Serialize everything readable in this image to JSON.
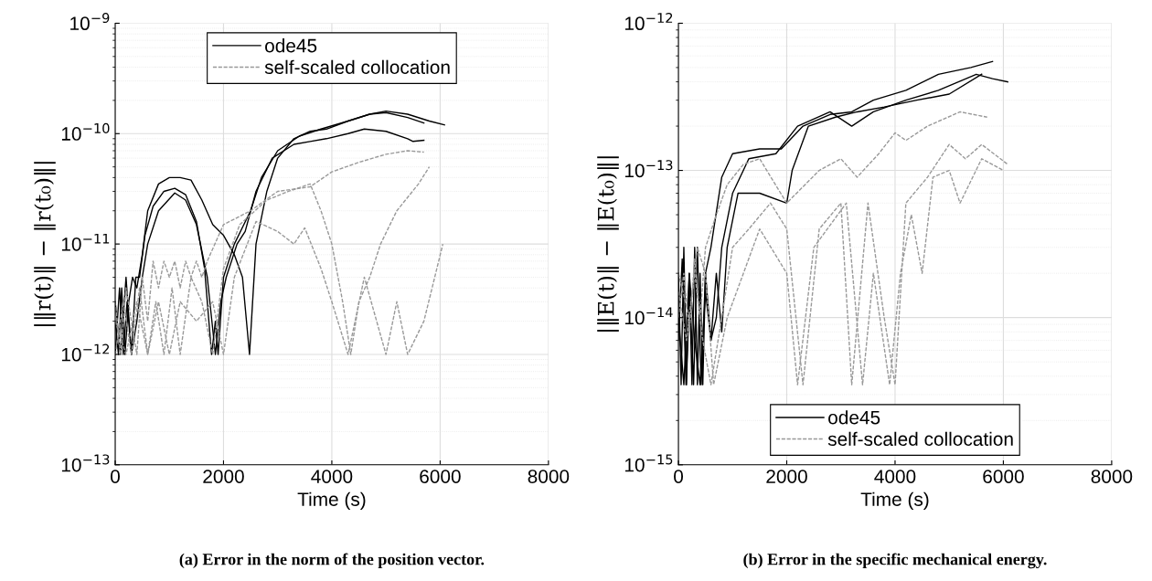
{
  "chart_data": [
    {
      "type": "line",
      "xlabel": "Time (s)",
      "ylabel": "|‖r(t)‖ − ‖r(t₀)‖|",
      "log": "y",
      "grid": true,
      "legend": "top",
      "xlim": [
        0,
        8000
      ],
      "xticks": [
        0,
        2000,
        4000,
        6000,
        8000
      ],
      "ylim": [
        1e-13,
        1e-09
      ],
      "yticks": [
        {
          "value": 1e-13,
          "label": "10$^{−13}$"
        },
        {
          "value": 1e-12,
          "label": "10$^{−12}$"
        },
        {
          "value": 1e-11,
          "label": "10$^{−11}$"
        },
        {
          "value": 1e-10,
          "label": "10$^{−10}$"
        },
        {
          "value": 1e-09,
          "label": "10$^{−9}$"
        }
      ],
      "annotations": [
        "(a) Error in the norm of the position vector."
      ],
      "series": [
        {
          "name": "ode45",
          "color": "#000000",
          "line_style": "solid",
          "x": [
            0,
            60,
            120,
            180,
            250,
            320,
            400,
            500,
            600,
            800,
            1000,
            1200,
            1400,
            1600,
            1800,
            2000,
            2200,
            2350,
            2480,
            2600,
            2800,
            3000,
            3300,
            3600,
            3900,
            4300,
            4700,
            5000,
            5400,
            5800,
            6080
          ],
          "values": [
            2e-12,
            1e-12,
            4e-12,
            1e-12,
            3e-12,
            5e-12,
            4e-12,
            8e-12,
            2e-11,
            3.5e-11,
            4e-11,
            4e-11,
            3.8e-11,
            2.5e-11,
            1.5e-11,
            1.2e-11,
            8e-12,
            5e-12,
            1e-12,
            1e-11,
            3e-11,
            6e-11,
            9e-11,
            1.05e-10,
            1.1e-10,
            1.3e-10,
            1.5e-10,
            1.6e-10,
            1.5e-10,
            1.3e-10,
            1.2e-10
          ]
        },
        {
          "color": "#000000",
          "line_style": "solid",
          "x": [
            0,
            80,
            150,
            220,
            300,
            380,
            450,
            550,
            700,
            900,
            1100,
            1300,
            1500,
            1650,
            1780,
            1850,
            1900,
            2000,
            2200,
            2500,
            2700,
            3000,
            3400,
            3800,
            4300,
            4700,
            5000,
            5400,
            5700
          ],
          "values": [
            1e-12,
            4e-12,
            1e-12,
            3e-12,
            1e-12,
            5e-12,
            5e-12,
            1.2e-11,
            2.2e-11,
            3e-11,
            3.2e-11,
            2.8e-11,
            1.6e-11,
            6e-12,
            1e-12,
            2e-12,
            1e-12,
            5e-12,
            1e-11,
            2e-11,
            4e-11,
            7e-11,
            9.5e-11,
            1.1e-10,
            1.3e-10,
            1.5e-10,
            1.55e-10,
            1.4e-10,
            1.25e-10
          ]
        },
        {
          "color": "#000000",
          "line_style": "solid",
          "x": [
            0,
            100,
            200,
            300,
            400,
            500,
            600,
            800,
            1100,
            1300,
            1500,
            1700,
            1850,
            1950,
            2050,
            2250,
            2400,
            2600,
            2900,
            3300,
            3600,
            3900,
            4300,
            4600,
            5000,
            5400,
            5500,
            5700
          ],
          "values": [
            3e-12,
            1e-12,
            5e-12,
            1e-12,
            2e-12,
            5e-12,
            1e-11,
            2e-11,
            2.9e-11,
            2.5e-11,
            1.5e-11,
            5e-12,
            1e-12,
            3e-12,
            5e-12,
            1e-11,
            1.3e-11,
            3e-11,
            6e-11,
            8e-11,
            8.5e-11,
            9e-11,
            1e-10,
            1.1e-10,
            1.05e-10,
            9e-11,
            8.5e-11,
            8.7e-11
          ]
        },
        {
          "name": "self-scaled collocation",
          "color": "#999999",
          "line_style": "dashed",
          "x": [
            0,
            100,
            200,
            300,
            400,
            500,
            600,
            700,
            800,
            900,
            1000,
            1100,
            1200,
            1300,
            1400,
            1500,
            1600,
            1700,
            2000,
            2500,
            3000,
            3600,
            4000,
            4500,
            5000,
            5400,
            5700
          ],
          "values": [
            3e-12,
            1e-12,
            4e-12,
            2e-12,
            1e-12,
            5e-12,
            2e-12,
            7e-12,
            4e-12,
            7e-12,
            5e-12,
            7e-12,
            4e-12,
            7e-12,
            5e-12,
            7e-12,
            5e-12,
            7e-12,
            1.5e-11,
            2e-11,
            3e-11,
            3.3e-11,
            4.5e-11,
            5.5e-11,
            6.5e-11,
            7e-11,
            6.8e-11
          ]
        },
        {
          "color": "#999999",
          "line_style": "dashed",
          "x": [
            0,
            150,
            300,
            450,
            600,
            750,
            900,
            1050,
            1200,
            1400,
            1600,
            1800,
            2000,
            2300,
            2800,
            3200,
            3600,
            3800,
            4000,
            4200,
            4350,
            4500,
            4700,
            4900,
            5200,
            5600,
            5800
          ],
          "values": [
            1e-12,
            3e-12,
            1e-12,
            4e-12,
            1e-12,
            3e-12,
            1e-12,
            4e-12,
            1e-12,
            5e-12,
            3e-12,
            1e-12,
            6e-12,
            1.5e-11,
            2.5e-11,
            3e-11,
            3.5e-11,
            2e-11,
            1e-11,
            3e-12,
            1e-12,
            3e-12,
            5e-12,
            1e-11,
            2e-11,
            3.5e-11,
            5e-11
          ]
        },
        {
          "color": "#999999",
          "line_style": "dashed",
          "x": [
            0,
            200,
            400,
            600,
            800,
            1000,
            1200,
            1500,
            1800,
            2000,
            2200,
            2600,
            3000,
            3300,
            3500,
            3800,
            4000,
            4300,
            4600,
            5000,
            5200,
            5400,
            5700,
            5900,
            6050
          ],
          "values": [
            2e-12,
            1e-12,
            3e-12,
            1e-12,
            3e-12,
            1e-12,
            3e-12,
            2e-12,
            3e-12,
            1e-12,
            5e-12,
            1.6e-11,
            1.3e-11,
            1e-11,
            1.4e-11,
            6e-12,
            3e-12,
            1e-12,
            5e-12,
            1e-12,
            3e-12,
            1e-12,
            2e-12,
            5e-12,
            1e-11
          ]
        }
      ]
    },
    {
      "type": "line",
      "xlabel": "Time (s)",
      "ylabel": "|‖E(t)‖ − ‖E(t₀)‖|",
      "log": "y",
      "grid": true,
      "legend": "bottom",
      "xlim": [
        0,
        8000
      ],
      "xticks": [
        0,
        2000,
        4000,
        6000,
        8000
      ],
      "ylim": [
        1e-15,
        1e-12
      ],
      "yticks": [
        {
          "value": 1e-15,
          "label": "10$^{−15}$"
        },
        {
          "value": 1e-14,
          "label": "10$^{−14}$"
        },
        {
          "value": 1e-13,
          "label": "10$^{−13}$"
        },
        {
          "value": 1e-12,
          "label": "10$^{−12}$"
        }
      ],
      "annotations": [
        "(b) Error in the specific mechanical energy."
      ],
      "series": [
        {
          "name": "ode45",
          "color": "#000000",
          "line_style": "solid",
          "x": [
            0,
            50,
            100,
            150,
            200,
            250,
            300,
            350,
            400,
            450,
            500,
            600,
            800,
            1000,
            1500,
            1900,
            2300,
            2800,
            3200,
            3600,
            4200,
            4800,
            5400,
            5800
          ],
          "values": [
            2e-14,
            3.5e-15,
            3e-14,
            3.5e-15,
            2e-14,
            3.5e-15,
            3e-14,
            3.5e-15,
            2e-14,
            3.5e-15,
            2e-14,
            3e-14,
            9e-14,
            1.3e-13,
            1.4e-13,
            1.4e-13,
            2e-13,
            2.4e-13,
            2.5e-13,
            3e-13,
            3.5e-13,
            4.5e-13,
            5e-13,
            5.5e-13
          ]
        },
        {
          "color": "#000000",
          "line_style": "solid",
          "x": [
            0,
            70,
            140,
            210,
            280,
            350,
            420,
            500,
            600,
            700,
            800,
            1000,
            1300,
            1800,
            2200,
            2800,
            3200,
            3600,
            4200,
            4800,
            5500,
            5800,
            6080
          ],
          "values": [
            7e-15,
            2.5e-14,
            3.5e-15,
            1.5e-14,
            3.5e-15,
            3e-14,
            3.5e-15,
            2e-14,
            7e-15,
            1e-14,
            3e-14,
            7e-14,
            1.2e-13,
            1.3e-13,
            2e-13,
            2.5e-13,
            2e-13,
            2.5e-13,
            3e-13,
            3.5e-13,
            4.5e-13,
            4.2e-13,
            4e-13
          ]
        },
        {
          "color": "#000000",
          "line_style": "solid",
          "x": [
            0,
            100,
            200,
            300,
            400,
            500,
            600,
            700,
            800,
            900,
            1100,
            1500,
            2000,
            2100,
            2400,
            2900,
            3300,
            3800,
            4400,
            5000,
            5600
          ],
          "values": [
            1e-14,
            3.5e-15,
            2e-14,
            7e-15,
            3.5e-15,
            1.5e-14,
            7e-15,
            2e-14,
            8e-15,
            3e-14,
            7e-14,
            7e-14,
            6e-14,
            1e-13,
            2e-13,
            2.3e-13,
            2.5e-13,
            2.7e-13,
            3e-13,
            3.3e-13,
            4.5e-13
          ]
        },
        {
          "name": "self-scaled collocation",
          "color": "#999999",
          "line_style": "dashed",
          "x": [
            0,
            100,
            200,
            300,
            400,
            500,
            700,
            900,
            1200,
            1500,
            2000,
            2600,
            3000,
            3300,
            3700,
            4000,
            4200,
            4600,
            5200,
            5700
          ],
          "values": [
            1e-14,
            2e-14,
            8e-15,
            2.5e-14,
            1e-14,
            3e-14,
            5e-14,
            8e-14,
            1.1e-13,
            1.2e-13,
            6e-14,
            1e-13,
            1.2e-13,
            9e-14,
            1.3e-13,
            1.8e-13,
            1.6e-13,
            2e-13,
            2.5e-13,
            2.3e-13
          ]
        },
        {
          "color": "#999999",
          "line_style": "dashed",
          "x": [
            0,
            150,
            300,
            450,
            600,
            800,
            1000,
            1300,
            1700,
            2000,
            2300,
            2600,
            3000,
            3200,
            3500,
            3800,
            4000,
            4200,
            4600,
            5000,
            5300,
            5600,
            6080
          ],
          "values": [
            1.5e-14,
            7e-15,
            2e-14,
            7e-15,
            3.5e-15,
            1e-14,
            3e-14,
            4e-14,
            6e-14,
            4e-14,
            3.5e-15,
            4e-14,
            6e-14,
            3.5e-15,
            6e-14,
            1e-14,
            3.5e-15,
            6e-14,
            9e-14,
            1.5e-13,
            1.2e-13,
            1.5e-13,
            1.1e-13
          ]
        },
        {
          "color": "#999999",
          "line_style": "dashed",
          "x": [
            0,
            200,
            350,
            500,
            650,
            900,
            1200,
            1500,
            2000,
            2200,
            2500,
            3100,
            3400,
            3600,
            3900,
            4100,
            4300,
            4500,
            4700,
            5000,
            5200,
            5600,
            6000
          ],
          "values": [
            2e-14,
            1e-14,
            3e-14,
            2e-14,
            3.5e-15,
            1e-14,
            2e-14,
            4e-14,
            2e-14,
            3.5e-15,
            3e-14,
            6e-14,
            3.5e-15,
            2e-14,
            3.5e-15,
            2e-14,
            5e-14,
            2e-14,
            9e-14,
            1e-13,
            6e-14,
            1.2e-13,
            1e-13
          ]
        }
      ]
    }
  ]
}
